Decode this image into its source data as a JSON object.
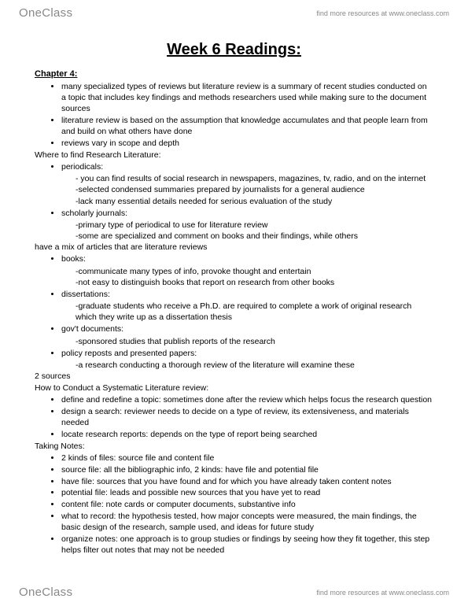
{
  "brand": {
    "part1": "One",
    "part2": "Class"
  },
  "tagline": "find more resources at www.oneclass.com",
  "title": "Week 6 Readings:",
  "chapter": "Chapter 4:",
  "intro_bullets": [
    "many specialized types of reviews but literature review is a summary of recent studies conducted on a topic that includes key findings and methods researchers used while making sure to the document sources",
    "literature review is based on the assumption that knowledge accumulates and that people learn from and build on what others have done",
    "reviews vary in scope and depth"
  ],
  "where_heading": "Where to find Research Literature:",
  "where": [
    {
      "label": "periodicals:",
      "lines": [
        "- you can find results of social research in newspapers, magazines, tv, radio, and on the internet",
        "-selected condensed summaries prepared by journalists for a general audience",
        "-lack many essential details needed for serious evaluation of the study"
      ]
    },
    {
      "label": "scholarly journals:",
      "lines": [
        "-primary type of periodical to use for literature review",
        "-some are specialized and comment on books and their findings, while others"
      ],
      "outdent": "have a mix of        articles that are literature reviews"
    },
    {
      "label": "books:",
      "lines": [
        "-communicate many types of info, provoke thought and entertain",
        "-not easy to distinguish books that report on research from other books"
      ]
    },
    {
      "label": "dissertations:",
      "lines": [
        "-graduate students who receive a Ph.D. are required to complete a work of original research which they write up as a dissertation thesis"
      ]
    },
    {
      "label": "gov't documents:",
      "lines": [
        "-sponsored studies that publish reports of the research"
      ]
    },
    {
      "label": "policy reposts and presented papers:",
      "lines": [
        "-a research conducting a thorough review of the literature will examine these"
      ],
      "outdent": "2 sources"
    }
  ],
  "how_heading": "How to Conduct a Systematic Literature review:",
  "how_bullets": [
    "define and redefine a topic: sometimes done after the review which helps focus the research question",
    "design a search: reviewer needs to decide on a type of review, its extensiveness, and materials needed",
    "locate research reports: depends on the type of report being searched"
  ],
  "notes_heading": "Taking Notes:",
  "notes_bullets": [
    "2 kinds of files: source file and content file",
    "source file: all the bibliographic info, 2 kinds: have file and potential file",
    "have file: sources that you have found and for which you have already taken content notes",
    "potential file: leads and possible new sources that you have yet to read",
    "content file: note cards or computer documents, substantive info",
    "what to record: the hypothesis tested, how major concepts were measured, the main findings, the basic design of the research, sample used, and ideas for future study",
    "organize notes: one approach is to group studies or findings by seeing how they fit together, this step helps filter out notes that may not be needed"
  ],
  "colors": {
    "text": "#000000",
    "muted": "#888888",
    "background": "#ffffff"
  },
  "typography": {
    "title_fontsize": 20,
    "body_fontsize": 10.5,
    "section_fontsize": 11,
    "tagline_fontsize": 9,
    "brand_fontsize": 15
  }
}
